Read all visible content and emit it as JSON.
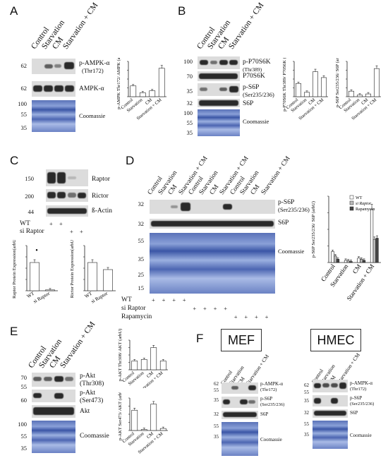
{
  "panels": {
    "A": {
      "label": "A",
      "lanes": [
        "Control",
        "Starvation",
        "CM",
        "Starvation + CM"
      ],
      "mw": [
        "62",
        "62",
        "100",
        "55",
        "35"
      ],
      "rows": [
        "p-AMPK-α",
        "(Thr172)",
        "AMPK-α",
        "Coomassie"
      ],
      "ylabel": "p-AMPK Thr172/ AMPK (arbU)"
    },
    "B": {
      "label": "B",
      "lanes": [
        "Control",
        "Starvation",
        "CM",
        "Starvation + CM"
      ],
      "mw": [
        "100",
        "70",
        "35",
        "32",
        "100",
        "55",
        "35"
      ],
      "rows": [
        "p-P70S6K",
        "(Thr389)",
        "P70S6K",
        "p-S6P",
        "(Ser235/236)",
        "S6P",
        "Coomassie"
      ],
      "ylabel1": "p-P70S6K Thr389/ P70S6K (arbU)",
      "ylabel2": "p-S6P Ser235/236/ S6P (arbU)"
    },
    "C": {
      "label": "C",
      "mw": [
        "150",
        "200",
        "44"
      ],
      "rows": [
        "Raptor",
        "Rictor",
        "ß-Actin"
      ],
      "wt": "WT",
      "si": "si Raptor",
      "ylabel1": "Raptor Protein Expression(arbU)",
      "ylabel2": "Rictor Protein Expression(arbU)",
      "xcats": [
        "WT",
        "si Raptor"
      ],
      "sig": "•"
    },
    "D": {
      "label": "D",
      "lanes": [
        "Control",
        "Starvation",
        "CM",
        "Starvation + CM",
        "Control",
        "Starvation",
        "CM",
        "Starvation + CM",
        "Control",
        "Starvation",
        "CM",
        "Starvation + CM"
      ],
      "mw": [
        "32",
        "32",
        "55",
        "35",
        "25",
        "15"
      ],
      "rows": [
        "p-S6P",
        "(Ser235/236)",
        "S6P",
        "Coomassie"
      ],
      "wt": "WT",
      "si": "si Raptor",
      "rapa": "Rapamycin",
      "plus": "+",
      "ylabel": "p-S6P Ser235/236/ S6P (arbU)",
      "legend": [
        "WT",
        "si Raptor",
        "Rapamycin"
      ],
      "xcats": [
        "Control",
        "Starvation",
        "CM",
        "Starvation + CM"
      ]
    },
    "E": {
      "label": "E",
      "lanes": [
        "Control",
        "Starvation",
        "CM",
        "Starvation + CM"
      ],
      "mw": [
        "70",
        "55",
        "60",
        "100",
        "55",
        "35"
      ],
      "rows": [
        "p-Akt",
        "(Thr308)",
        "p-Akt",
        "(Ser473)",
        "Akt",
        "Coomassie"
      ],
      "ylabel1": "p-AKT Thr308/ AKT (arbU)",
      "ylabel2": "p-AKT Ser473/ AKT (arbU)"
    },
    "F": {
      "label": "F",
      "mef": "MEF",
      "hmec": "HMEC",
      "lanes": [
        "Control",
        "Starvation",
        "CM",
        "Starvation + CM"
      ],
      "mw_mef": [
        "62",
        "55",
        "35",
        "32",
        "55",
        "35"
      ],
      "mw_hmec": [
        "62",
        "55",
        "35",
        "32",
        "55",
        "35"
      ],
      "rows": [
        "p-AMPK-α",
        "(Thr172)",
        "p-S6P",
        "(Ser235/236)",
        "S6P",
        "Coomassie"
      ]
    }
  },
  "chart_data": [
    {
      "type": "bar",
      "categories": [
        "Control",
        "Starvation",
        "CM",
        "Starvation + CM"
      ],
      "values": [
        1.1,
        0.4,
        0.6,
        2.9
      ],
      "ylabel": "p-AMPK Thr172/ AMPK (arbU)"
    },
    {
      "type": "bar",
      "categories": [
        "Control",
        "Starvation",
        "CM",
        "Starvation + CM"
      ],
      "values": [
        0.9,
        0.3,
        1.7,
        1.3
      ],
      "ylabel": "p-P70S6K Thr389/ P70S6K (arbU)"
    },
    {
      "type": "bar",
      "categories": [
        "Control",
        "Starvation",
        "CM",
        "Starvation + CM"
      ],
      "values": [
        1.0,
        0.3,
        0.5,
        5.1
      ],
      "ylabel": "p-S6P Ser235/236/ S6P (arbU)"
    },
    {
      "type": "bar",
      "categories": [
        "WT",
        "si Raptor"
      ],
      "values": [
        1.0,
        0.03
      ],
      "ylabel": "Raptor Protein Expression(arbU)"
    },
    {
      "type": "bar",
      "categories": [
        "WT",
        "si Raptor"
      ],
      "values": [
        1.0,
        0.75
      ],
      "ylabel": "Rictor Protein Expression(arbU)"
    },
    {
      "type": "bar",
      "categories": [
        "Control",
        "Starvation",
        "CM",
        "Starvation + CM"
      ],
      "series": [
        {
          "name": "WT",
          "values": [
            1.0,
            0.2,
            0.4,
            4.8
          ]
        },
        {
          "name": "si Raptor",
          "values": [
            0.6,
            0.15,
            0.3,
            2.1
          ]
        },
        {
          "name": "Rapamycin",
          "values": [
            0.3,
            0.1,
            0.2,
            2.2
          ]
        }
      ],
      "ylabel": "p-S6P Ser235/236/ S6P (arbU)"
    },
    {
      "type": "bar",
      "categories": [
        "Control",
        "Starvation",
        "CM",
        "Starvation + CM"
      ],
      "values": [
        0.6,
        0.7,
        1.5,
        0.6
      ],
      "ylabel": "p-AKT Thr308/ AKT (arbU)"
    },
    {
      "type": "bar",
      "categories": [
        "Control",
        "Starvation",
        "CM",
        "Starvation + CM"
      ],
      "values": [
        1.0,
        0.05,
        1.3,
        0.1
      ],
      "ylabel": "p-AKT Ser473/ AKT (arbU)"
    }
  ]
}
